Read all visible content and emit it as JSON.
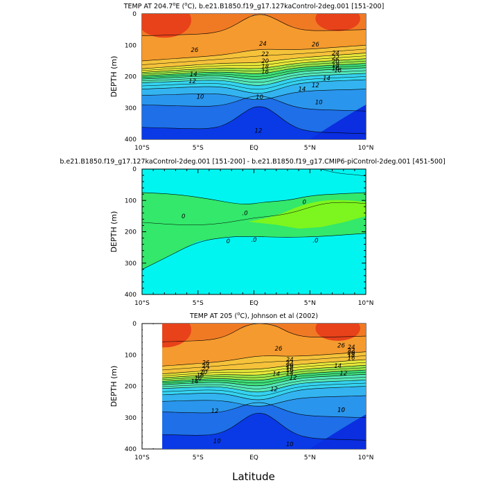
{
  "chart_data": [
    {
      "type": "contour",
      "title": "TEMP AT 204.7",
      "title_super": "o",
      "title_rest": "E (",
      "title_super2": "o",
      "title_rest2": "C), b.e21.B1850.f19_g17.127kaControl-2deg.001 [151-200]",
      "xlabel": "",
      "ylabel": "DEPTH (m)",
      "x_ticks": [
        "10°S",
        "5°S",
        "EQ",
        "5°N",
        "10°N"
      ],
      "x_values": [
        -10,
        -5,
        0,
        5,
        10
      ],
      "y_ticks": [
        "0",
        "100",
        "200",
        "300",
        "400"
      ],
      "y_values": [
        0,
        100,
        200,
        300,
        400
      ],
      "xlim": [
        -10,
        10
      ],
      "ylim": [
        0,
        400
      ],
      "contour_labels": [
        "26",
        "24",
        "26",
        "22",
        "20",
        "18",
        "16",
        "14",
        "12",
        "10",
        "10",
        "12",
        "14",
        "16",
        "24",
        "22",
        "20",
        "18",
        "16",
        "14",
        "12",
        "10"
      ],
      "levels": [
        10,
        12,
        14,
        16,
        18,
        20,
        22,
        24,
        26,
        28
      ]
    },
    {
      "type": "contour",
      "title": "b.e21.B1850.f19_g17.127kaControl-2deg.001 [151-200] - b.e21.B1850.f19_g17.CMIP6-piControl-2deg.001 [451-500]",
      "xlabel": "",
      "ylabel": "DEPTH (m)",
      "x_ticks": [
        "10°S",
        "5°S",
        "EQ",
        "5°N",
        "10°N"
      ],
      "y_ticks": [
        "0",
        "100",
        "200",
        "300",
        "400"
      ],
      "xlim": [
        -10,
        10
      ],
      "ylim": [
        0,
        400
      ],
      "contour_labels": [
        "0",
        "0",
        ".0",
        "0",
        ".0",
        ".0"
      ],
      "levels": [
        -0.5,
        0,
        0.5
      ]
    },
    {
      "type": "contour",
      "title": "TEMP AT 205 (",
      "title_super": "o",
      "title_rest": "C), Johnson et al (2002)",
      "xlabel": "Latitude",
      "ylabel": "DEPTH (m)",
      "x_ticks": [
        "10°S",
        "5°S",
        "EQ",
        "5°N",
        "10°N"
      ],
      "y_ticks": [
        "0",
        "100",
        "200",
        "300",
        "400"
      ],
      "xlim": [
        -10,
        10
      ],
      "ylim": [
        0,
        400
      ],
      "contour_labels": [
        "26",
        "24",
        "22",
        "20",
        "18",
        "16",
        "14",
        "12",
        "10",
        "10",
        "26",
        "24",
        "22",
        "20",
        "18",
        "16",
        "14",
        "12",
        "12",
        "14",
        "10",
        "26",
        "24",
        "22",
        "20",
        "18",
        "16",
        "14",
        "12",
        "10"
      ],
      "levels": [
        10,
        12,
        14,
        16,
        18,
        20,
        22,
        24,
        26,
        28
      ]
    }
  ]
}
